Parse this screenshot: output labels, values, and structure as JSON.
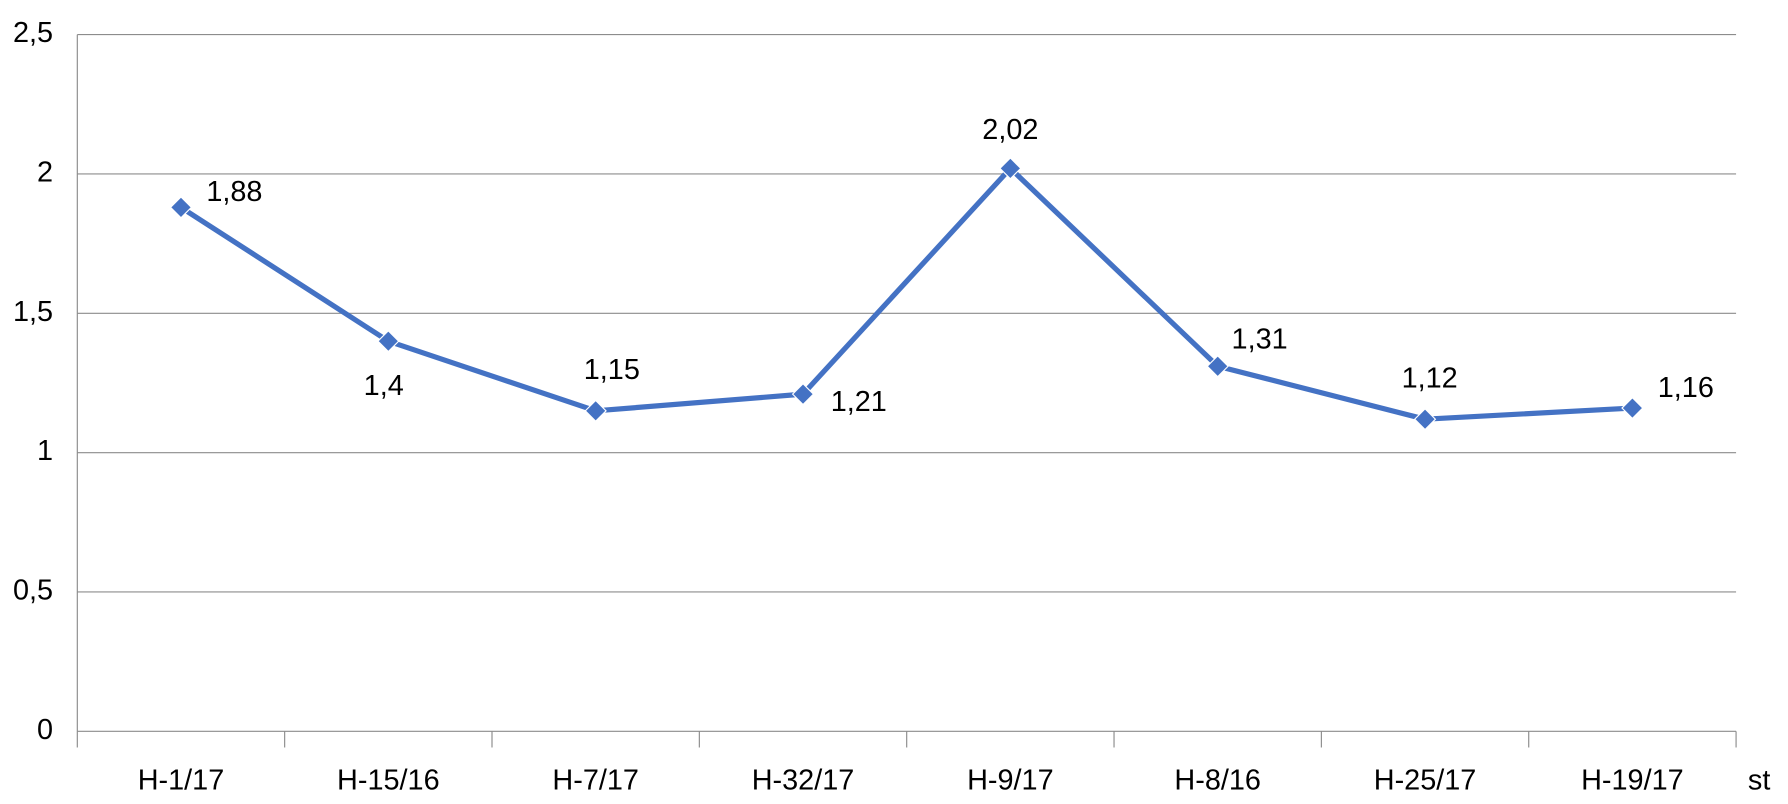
{
  "chart_data": {
    "type": "line",
    "x_label": "st",
    "categories": [
      "H-1/17",
      "H-15/16",
      "H-7/17",
      "H-32/17",
      "H-9/17",
      "H-8/16",
      "H-25/17",
      "H-19/17"
    ],
    "series": [
      {
        "color": "#4472c4",
        "values": [
          1.88,
          1.4,
          1.15,
          1.21,
          2.02,
          1.31,
          1.12,
          1.16
        ],
        "value_labels": [
          "1,88",
          "1,4",
          "1,15",
          "1,21",
          "2,02",
          "1,31",
          "1,12",
          "1,16"
        ]
      }
    ],
    "ylim": [
      0,
      2.5
    ],
    "yticks": [
      0,
      {
        "value": 0.5,
        "label": "0,5"
      },
      1,
      {
        "value": 1.5,
        "label": "1,5"
      },
      2,
      {
        "value": 2.5,
        "label": "2,5"
      }
    ],
    "grid": true
  }
}
